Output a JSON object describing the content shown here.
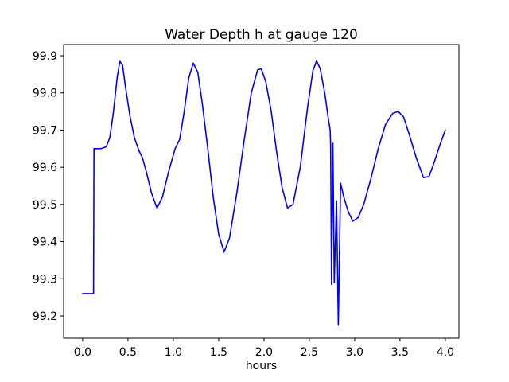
{
  "chart_data": {
    "type": "line",
    "title": "Water Depth h at gauge 120",
    "xlabel": "hours",
    "ylabel": "",
    "x_tick_labels": [
      "0.0",
      "0.5",
      "1.0",
      "1.5",
      "2.0",
      "2.5",
      "3.0",
      "3.5",
      "4.0"
    ],
    "y_tick_labels": [
      "99.2",
      "99.3",
      "99.4",
      "99.5",
      "99.6",
      "99.7",
      "99.8",
      "99.9"
    ],
    "xlim": [
      -0.21,
      4.15
    ],
    "ylim": [
      99.14,
      99.93
    ],
    "grid": false,
    "legend": "none",
    "axis_color": "#000000",
    "background_color": "#ffffff",
    "series": [
      {
        "name": "water-depth-h",
        "color": "#0000ff",
        "points": [
          [
            0.0,
            99.26
          ],
          [
            0.12,
            99.26
          ],
          [
            0.125,
            99.65
          ],
          [
            0.2,
            99.65
          ],
          [
            0.26,
            99.655
          ],
          [
            0.3,
            99.68
          ],
          [
            0.34,
            99.75
          ],
          [
            0.38,
            99.84
          ],
          [
            0.41,
            99.885
          ],
          [
            0.44,
            99.875
          ],
          [
            0.47,
            99.82
          ],
          [
            0.52,
            99.74
          ],
          [
            0.57,
            99.68
          ],
          [
            0.62,
            99.645
          ],
          [
            0.66,
            99.625
          ],
          [
            0.7,
            99.59
          ],
          [
            0.76,
            99.53
          ],
          [
            0.82,
            99.49
          ],
          [
            0.88,
            99.52
          ],
          [
            0.95,
            99.59
          ],
          [
            1.02,
            99.65
          ],
          [
            1.07,
            99.675
          ],
          [
            1.12,
            99.75
          ],
          [
            1.17,
            99.84
          ],
          [
            1.22,
            99.88
          ],
          [
            1.27,
            99.855
          ],
          [
            1.32,
            99.77
          ],
          [
            1.38,
            99.65
          ],
          [
            1.44,
            99.52
          ],
          [
            1.5,
            99.42
          ],
          [
            1.56,
            99.372
          ],
          [
            1.62,
            99.41
          ],
          [
            1.7,
            99.53
          ],
          [
            1.78,
            99.67
          ],
          [
            1.86,
            99.8
          ],
          [
            1.93,
            99.862
          ],
          [
            1.97,
            99.865
          ],
          [
            2.02,
            99.83
          ],
          [
            2.08,
            99.75
          ],
          [
            2.14,
            99.64
          ],
          [
            2.2,
            99.545
          ],
          [
            2.26,
            99.49
          ],
          [
            2.32,
            99.5
          ],
          [
            2.4,
            99.6
          ],
          [
            2.48,
            99.76
          ],
          [
            2.54,
            99.86
          ],
          [
            2.58,
            99.886
          ],
          [
            2.62,
            99.865
          ],
          [
            2.67,
            99.8
          ],
          [
            2.71,
            99.73
          ],
          [
            2.73,
            99.7
          ],
          [
            2.735,
            99.66
          ],
          [
            2.745,
            99.285
          ],
          [
            2.76,
            99.665
          ],
          [
            2.775,
            99.29
          ],
          [
            2.8,
            99.51
          ],
          [
            2.82,
            99.175
          ],
          [
            2.845,
            99.557
          ],
          [
            2.88,
            99.52
          ],
          [
            2.93,
            99.48
          ],
          [
            2.98,
            99.455
          ],
          [
            3.04,
            99.465
          ],
          [
            3.1,
            99.5
          ],
          [
            3.18,
            99.57
          ],
          [
            3.26,
            99.65
          ],
          [
            3.34,
            99.715
          ],
          [
            3.42,
            99.745
          ],
          [
            3.48,
            99.75
          ],
          [
            3.54,
            99.735
          ],
          [
            3.6,
            99.69
          ],
          [
            3.68,
            99.625
          ],
          [
            3.76,
            99.572
          ],
          [
            3.82,
            99.575
          ],
          [
            3.88,
            99.615
          ],
          [
            3.94,
            99.66
          ],
          [
            4.0,
            99.7
          ]
        ]
      }
    ]
  }
}
